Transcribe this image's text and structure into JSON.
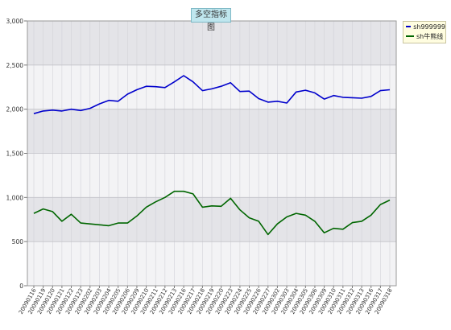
{
  "chart_data": {
    "type": "line",
    "title": "多空指标图",
    "ylim": [
      0,
      3000
    ],
    "yticks": [
      0,
      500,
      1000,
      1500,
      2000,
      2500,
      3000
    ],
    "ytick_labels": [
      "0",
      "500",
      "1,000",
      "1,500",
      "2,000",
      "2,500",
      "3,000"
    ],
    "grid": true,
    "legend_position": "top-right",
    "x": [
      "20090116",
      "20090119",
      "20090120",
      "20090121",
      "20090122",
      "20090123",
      "20090202",
      "20090203",
      "20090204",
      "20090205",
      "20090206",
      "20090209",
      "20090210",
      "20090211",
      "20090212",
      "20090213",
      "20090216",
      "20090217",
      "20090218",
      "20090219",
      "20090220",
      "20090223",
      "20090224",
      "20090225",
      "20090226",
      "20090227",
      "20090302",
      "20090303",
      "20090304",
      "20090305",
      "20090306",
      "20090309",
      "20090310",
      "20090311",
      "20090312",
      "20090313",
      "20090316",
      "20090317",
      "20090318"
    ],
    "series": [
      {
        "name": "sh999999",
        "color": "#0000cc",
        "values": [
          1950,
          1980,
          1990,
          1980,
          2000,
          1985,
          2010,
          2060,
          2100,
          2090,
          2170,
          2220,
          2260,
          2255,
          2245,
          2310,
          2380,
          2310,
          2210,
          2230,
          2260,
          2300,
          2200,
          2205,
          2120,
          2080,
          2090,
          2070,
          2195,
          2215,
          2185,
          2115,
          2155,
          2135,
          2130,
          2125,
          2145,
          2210,
          2220
        ]
      },
      {
        "name": "sh牛熊线",
        "color": "#006600",
        "values": [
          820,
          870,
          840,
          730,
          810,
          710,
          700,
          690,
          680,
          710,
          710,
          790,
          890,
          950,
          1000,
          1070,
          1070,
          1040,
          890,
          905,
          900,
          990,
          860,
          770,
          730,
          580,
          700,
          780,
          820,
          800,
          730,
          600,
          650,
          640,
          715,
          730,
          800,
          920,
          970
        ]
      }
    ]
  }
}
